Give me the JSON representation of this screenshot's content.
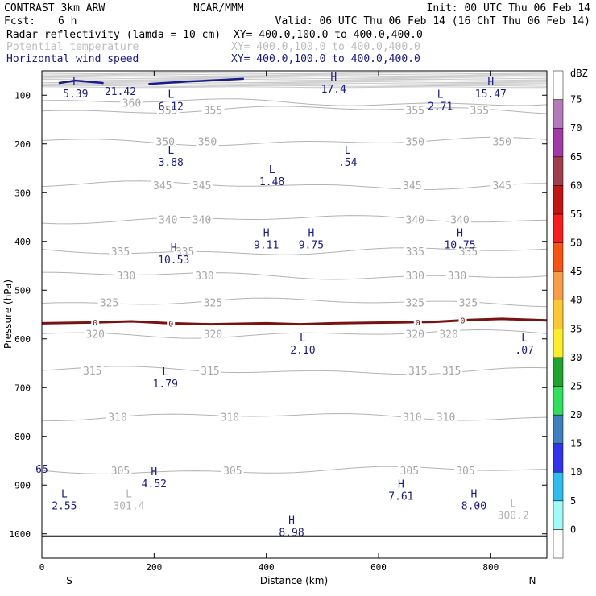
{
  "header": {
    "title": "CONTRAST  3km ARW",
    "org": "NCAR/MMM",
    "init": "Init: 00 UTC Thu 06 Feb 14",
    "fcst_label": "Fcst:",
    "fcst_value": "6 h",
    "valid": "Valid: 06 UTC Thu 06 Feb 14 (16 ChT Thu 06 Feb 14)",
    "fields": [
      {
        "name": "Radar reflectivity (lamda = 10 cm)",
        "xy": "XY= 400.0,100.0 to 400.0,400.0",
        "color": "#000000"
      },
      {
        "name": "Potential temperature",
        "xy": "XY= 400.0,100.0 to 400.0,400.0",
        "color": "#bdbdbd"
      },
      {
        "name": "Horizontal wind speed",
        "xy": "XY= 400.0,100.0 to 400.0,400.0",
        "color": "#1a1a8c"
      }
    ]
  },
  "chart_data": {
    "type": "cross-section",
    "xlabel": "Distance (km)",
    "ylabel": "Pressure (hPa)",
    "xlim": [
      0,
      900
    ],
    "ylim": [
      50,
      1050
    ],
    "x_ticks": [
      0,
      200,
      400,
      600,
      800
    ],
    "y_ticks": [
      100,
      200,
      300,
      400,
      500,
      600,
      700,
      800,
      900,
      1000
    ],
    "x_end_labels": {
      "left": "S",
      "right": "N"
    },
    "colorbar": {
      "title": "dBZ",
      "levels": [
        0,
        5,
        10,
        15,
        20,
        25,
        30,
        35,
        40,
        45,
        50,
        55,
        60,
        65,
        70,
        75
      ],
      "colors": [
        "#ffffff",
        "#9ffbf8",
        "#2fbdf0",
        "#3333ee",
        "#3d7fbf",
        "#2ee05c",
        "#1fa52d",
        "#fbed28",
        "#fbc832",
        "#f79c47",
        "#f85313",
        "#f81c1c",
        "#c31414",
        "#a23d4c",
        "#a13aa5",
        "#b47bbc",
        "#ffffff"
      ]
    },
    "theta_contours": [
      {
        "value": 305,
        "p": 870,
        "labels": [
          {
            "x": 140,
            "text": "305"
          },
          {
            "x": 340,
            "text": "305"
          },
          {
            "x": 655,
            "text": "305"
          },
          {
            "x": 755,
            "text": "305"
          }
        ]
      },
      {
        "value": 310,
        "p": 760,
        "labels": [
          {
            "x": 135,
            "text": "310"
          },
          {
            "x": 335,
            "text": "310"
          },
          {
            "x": 660,
            "text": "310"
          },
          {
            "x": 720,
            "text": "310"
          }
        ]
      },
      {
        "value": 315,
        "p": 665,
        "labels": [
          {
            "x": 90,
            "text": "315"
          },
          {
            "x": 300,
            "text": "315"
          },
          {
            "x": 670,
            "text": "315"
          },
          {
            "x": 730,
            "text": "315"
          }
        ]
      },
      {
        "value": 320,
        "p": 590,
        "labels": [
          {
            "x": 95,
            "text": "320"
          },
          {
            "x": 305,
            "text": "320"
          },
          {
            "x": 665,
            "text": "320"
          },
          {
            "x": 725,
            "text": "320"
          }
        ]
      },
      {
        "value": 325,
        "p": 525,
        "labels": [
          {
            "x": 120,
            "text": "325"
          },
          {
            "x": 305,
            "text": "325"
          },
          {
            "x": 665,
            "text": "325"
          },
          {
            "x": 760,
            "text": "325"
          }
        ]
      },
      {
        "value": 330,
        "p": 470,
        "labels": [
          {
            "x": 150,
            "text": "330"
          },
          {
            "x": 290,
            "text": "330"
          },
          {
            "x": 665,
            "text": "330"
          },
          {
            "x": 740,
            "text": "330"
          }
        ]
      },
      {
        "value": 335,
        "p": 420,
        "labels": [
          {
            "x": 140,
            "text": "335"
          },
          {
            "x": 255,
            "text": "335"
          },
          {
            "x": 665,
            "text": "335"
          },
          {
            "x": 760,
            "text": "335"
          }
        ]
      },
      {
        "value": 340,
        "p": 355,
        "labels": [
          {
            "x": 225,
            "text": "340"
          },
          {
            "x": 285,
            "text": "340"
          },
          {
            "x": 665,
            "text": "340"
          },
          {
            "x": 745,
            "text": "340"
          }
        ]
      },
      {
        "value": 345,
        "p": 285,
        "labels": [
          {
            "x": 215,
            "text": "345"
          },
          {
            "x": 285,
            "text": "345"
          },
          {
            "x": 660,
            "text": "345"
          },
          {
            "x": 820,
            "text": "345"
          }
        ]
      },
      {
        "value": 350,
        "p": 195,
        "labels": [
          {
            "x": 220,
            "text": "350"
          },
          {
            "x": 295,
            "text": "350"
          },
          {
            "x": 665,
            "text": "350"
          },
          {
            "x": 820,
            "text": "350"
          }
        ]
      },
      {
        "value": 355,
        "p": 130,
        "labels": [
          {
            "x": 225,
            "text": "355"
          },
          {
            "x": 305,
            "text": "355"
          },
          {
            "x": 665,
            "text": "355"
          },
          {
            "x": 780,
            "text": "355"
          }
        ]
      },
      {
        "value": 360,
        "p": 115,
        "labels": [
          {
            "x": 160,
            "text": "360"
          }
        ]
      }
    ],
    "freezing_level": {
      "label": "0",
      "points": [
        [
          0,
          568
        ],
        [
          100,
          566
        ],
        [
          160,
          564
        ],
        [
          230,
          568
        ],
        [
          300,
          570
        ],
        [
          400,
          568
        ],
        [
          460,
          570
        ],
        [
          520,
          568
        ],
        [
          580,
          567
        ],
        [
          640,
          566
        ],
        [
          700,
          565
        ],
        [
          760,
          561
        ],
        [
          820,
          559
        ],
        [
          900,
          562
        ]
      ],
      "marker_x": [
        95,
        230,
        670,
        750
      ]
    },
    "extrema": [
      {
        "kind": "L",
        "x": 60,
        "p": 80,
        "value": "5.39"
      },
      {
        "kind": "",
        "x": 140,
        "p": 75,
        "value": "21.42"
      },
      {
        "kind": "L",
        "x": 230,
        "p": 105,
        "value": "6.12"
      },
      {
        "kind": "H",
        "x": 520,
        "p": 70,
        "value": "17.4"
      },
      {
        "kind": "L",
        "x": 710,
        "p": 105,
        "value": "2.71"
      },
      {
        "kind": "H",
        "x": 800,
        "p": 80,
        "value": "15.47"
      },
      {
        "kind": "L",
        "x": 230,
        "p": 220,
        "value": "3.88"
      },
      {
        "kind": "L",
        "x": 545,
        "p": 220,
        "value": ".54"
      },
      {
        "kind": "L",
        "x": 410,
        "p": 260,
        "value": "1.48"
      },
      {
        "kind": "H",
        "x": 400,
        "p": 390,
        "value": "9.11"
      },
      {
        "kind": "H",
        "x": 480,
        "p": 390,
        "value": "9.75"
      },
      {
        "kind": "H",
        "x": 745,
        "p": 390,
        "value": "10.75"
      },
      {
        "kind": "H",
        "x": 235,
        "p": 420,
        "value": "10.53"
      },
      {
        "kind": "L",
        "x": 465,
        "p": 605,
        "value": "2.10"
      },
      {
        "kind": "L",
        "x": 860,
        "p": 605,
        "value": ".07"
      },
      {
        "kind": "L",
        "x": 220,
        "p": 675,
        "value": "1.79"
      },
      {
        "kind": "H",
        "x": 200,
        "p": 880,
        "value": "4.52"
      },
      {
        "kind": "H",
        "x": 640,
        "p": 905,
        "value": "7.61"
      },
      {
        "kind": "H",
        "x": 770,
        "p": 925,
        "value": "8.00"
      },
      {
        "kind": "L",
        "x": 40,
        "p": 925,
        "value": "2.55"
      },
      {
        "kind": "",
        "x": 0,
        "p": 850,
        "value": "65"
      },
      {
        "kind": "H",
        "x": 445,
        "p": 980,
        "value": "8.98"
      }
    ],
    "extrema_gray": [
      {
        "kind": "L",
        "x": 155,
        "p": 925,
        "value": "301.4"
      },
      {
        "kind": "L",
        "x": 840,
        "p": 945,
        "value": "300.2"
      }
    ],
    "jet_segments": [
      {
        "points": [
          [
            30,
            75
          ],
          [
            60,
            70
          ],
          [
            110,
            75
          ]
        ]
      },
      {
        "points": [
          [
            190,
            77
          ],
          [
            260,
            72
          ],
          [
            330,
            68
          ],
          [
            360,
            66
          ]
        ]
      }
    ]
  }
}
